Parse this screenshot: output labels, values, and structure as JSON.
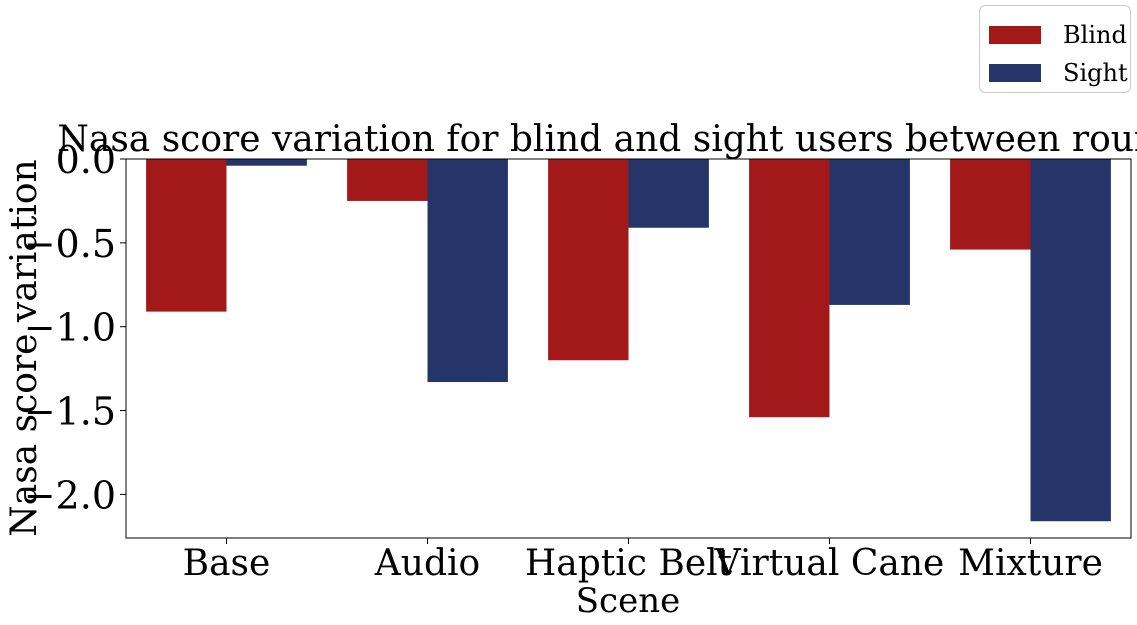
{
  "chart_data": {
    "type": "bar",
    "title": "Nasa score variation for blind and sight users between rounds",
    "xlabel": "Scene",
    "ylabel": "Nasa score variation",
    "categories": [
      "Base",
      "Audio",
      "Haptic Belt",
      "Virtual Cane",
      "Mixture"
    ],
    "series": [
      {
        "name": "Blind",
        "color": "#a31818",
        "values": [
          -0.91,
          -0.25,
          -1.2,
          -1.54,
          -0.54
        ]
      },
      {
        "name": "Sight",
        "color": "#253569",
        "values": [
          -0.04,
          -1.33,
          -0.41,
          -0.87,
          -2.16
        ]
      }
    ],
    "ylim": [
      -2.26,
      0.0
    ],
    "yticks": [
      0.0,
      -0.5,
      -1.0,
      -1.5,
      -2.0
    ],
    "ytick_labels": [
      "0.0",
      "−0.5",
      "−1.0",
      "−1.5",
      "−2.0"
    ],
    "grid": false,
    "legend_position": "top-right"
  }
}
